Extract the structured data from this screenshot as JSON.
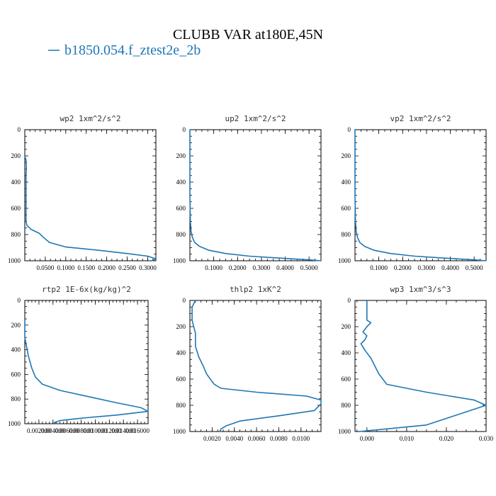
{
  "figure": {
    "title": "CLUBB VAR at180E,45N",
    "legend_label": "b1850.054.f_ztest2e_2b",
    "series_color": "#1f77b4"
  },
  "chart_data": [
    {
      "type": "line",
      "title": "wp2  1xm^2/s^2",
      "xlim": [
        0.0,
        0.32
      ],
      "ylim": [
        1000,
        0
      ],
      "grid": false,
      "xticks": [
        0.05,
        0.1,
        0.15,
        0.2,
        0.25,
        0.3
      ],
      "xtick_labels": [
        "0.0500",
        "0.1000",
        "0.1500",
        "0.2000",
        "0.2500",
        "0.3000"
      ],
      "yticks": [
        0,
        200,
        400,
        600,
        800,
        1000
      ],
      "ytick_labels": [
        "0",
        "200",
        "400",
        "600",
        "800",
        "1000"
      ],
      "series": [
        {
          "x": [
            0.0,
            0.003,
            0.004,
            0.003,
            0.003,
            0.003,
            0.005,
            0.015,
            0.035,
            0.045,
            0.06,
            0.1,
            0.18,
            0.25,
            0.3,
            0.32,
            0.31
          ],
          "y": [
            200,
            230,
            300,
            340,
            500,
            700,
            730,
            760,
            790,
            820,
            860,
            895,
            920,
            945,
            965,
            985,
            1000
          ]
        }
      ]
    },
    {
      "type": "line",
      "title": "up2  1xm^2/s^2",
      "xlim": [
        0.0,
        0.55
      ],
      "ylim": [
        1000,
        0
      ],
      "grid": false,
      "xticks": [
        0.1,
        0.2,
        0.3,
        0.4,
        0.5
      ],
      "xtick_labels": [
        "0.1000",
        "0.2000",
        "0.3000",
        "0.4000",
        "0.5000"
      ],
      "yticks": [
        0,
        200,
        400,
        600,
        800,
        1000
      ],
      "ytick_labels": [
        "0",
        "200",
        "400",
        "600",
        "800",
        "1000"
      ],
      "series": [
        {
          "x": [
            0.0,
            0.0,
            0.002,
            0.005,
            0.01,
            0.02,
            0.04,
            0.08,
            0.15,
            0.25,
            0.38,
            0.5,
            0.55
          ],
          "y": [
            0,
            500,
            700,
            780,
            820,
            860,
            890,
            920,
            945,
            965,
            980,
            993,
            1000
          ]
        }
      ]
    },
    {
      "type": "line",
      "title": "vp2  1xm^2/s^2",
      "xlim": [
        0.0,
        0.55
      ],
      "ylim": [
        1000,
        0
      ],
      "grid": false,
      "xticks": [
        0.1,
        0.2,
        0.3,
        0.4,
        0.5
      ],
      "xtick_labels": [
        "0.1000",
        "0.2000",
        "0.3000",
        "0.4000",
        "0.5000"
      ],
      "yticks": [
        0,
        200,
        400,
        600,
        800,
        1000
      ],
      "ytick_labels": [
        "0",
        "200",
        "400",
        "600",
        "800",
        "1000"
      ],
      "series": [
        {
          "x": [
            0.0,
            0.0,
            0.002,
            0.005,
            0.01,
            0.02,
            0.04,
            0.08,
            0.15,
            0.25,
            0.38,
            0.5,
            0.55
          ],
          "y": [
            0,
            500,
            700,
            780,
            820,
            860,
            890,
            920,
            945,
            965,
            980,
            993,
            1000
          ]
        }
      ]
    },
    {
      "type": "line",
      "title": "rtp2  1E-6x(kg/kg)^2",
      "xlim": [
        0.0,
        0.0175
      ],
      "ylim": [
        1000,
        0
      ],
      "grid": false,
      "xticks": [
        0.002,
        0.004,
        0.006,
        0.008,
        0.01,
        0.012,
        0.014,
        0.016
      ],
      "xtick_labels": [
        "0.002000",
        "0.004000",
        "0.006000",
        "0.008000",
        "0.010000",
        "0.012000",
        "0.014000",
        "0.016000"
      ],
      "yticks": [
        0,
        200,
        400,
        600,
        800,
        1000
      ],
      "ytick_labels": [
        "0",
        "200",
        "400",
        "600",
        "800",
        "1000"
      ],
      "series": [
        {
          "x": [
            0.0,
            0.0,
            0.0005,
            0.001,
            0.0015,
            0.0025,
            0.005,
            0.009,
            0.013,
            0.0165,
            0.0175,
            0.013,
            0.008,
            0.005,
            0.0042,
            0.0045
          ],
          "y": [
            150,
            300,
            450,
            550,
            620,
            680,
            730,
            780,
            830,
            870,
            900,
            930,
            955,
            975,
            990,
            1000
          ]
        }
      ]
    },
    {
      "type": "line",
      "title": "thlp2  1xK^2",
      "xlim": [
        0.0,
        0.0118
      ],
      "ylim": [
        1000,
        0
      ],
      "grid": false,
      "xticks": [
        0.002,
        0.004,
        0.006,
        0.008,
        0.01
      ],
      "xtick_labels": [
        "0.0020",
        "0.0040",
        "0.0060",
        "0.0080",
        "0.0100"
      ],
      "yticks": [
        0,
        200,
        400,
        600,
        800,
        1000
      ],
      "ytick_labels": [
        "0",
        "200",
        "400",
        "600",
        "800",
        "1000"
      ],
      "series": [
        {
          "x": [
            0.0005,
            0.0002,
            0.0002,
            0.0005,
            0.0005,
            0.0008,
            0.0012,
            0.0015,
            0.002,
            0.0022,
            0.0028,
            0.006,
            0.0105,
            0.0118,
            0.0118,
            0.0112,
            0.008,
            0.0045,
            0.0033,
            0.0028,
            0.0027
          ],
          "y": [
            0,
            50,
            150,
            250,
            350,
            430,
            500,
            560,
            620,
            640,
            670,
            700,
            730,
            760,
            790,
            840,
            880,
            920,
            955,
            980,
            1000
          ]
        }
      ]
    },
    {
      "type": "line",
      "title": "wp3  1xm^3/s^3",
      "xlim": [
        -0.003,
        0.03
      ],
      "ylim": [
        1000,
        0
      ],
      "grid": false,
      "xticks": [
        0.0,
        0.01,
        0.02,
        0.03
      ],
      "xtick_labels": [
        "0.000",
        "0.010",
        "0.020",
        "0.030"
      ],
      "yticks": [
        0,
        200,
        400,
        600,
        800,
        1000
      ],
      "ytick_labels": [
        "0",
        "200",
        "400",
        "600",
        "800",
        "1000"
      ],
      "series": [
        {
          "x": [
            0.0,
            0.0,
            0.001,
            0.0,
            -0.001,
            0.0,
            -0.0005,
            -0.0015,
            -0.0005,
            0.001,
            0.002,
            0.003,
            0.005,
            0.015,
            0.027,
            0.03,
            0.026,
            0.02,
            0.015,
            0.005,
            -0.002
          ],
          "y": [
            0,
            150,
            170,
            200,
            240,
            270,
            300,
            330,
            380,
            440,
            500,
            560,
            640,
            700,
            760,
            800,
            840,
            900,
            950,
            980,
            1000
          ]
        }
      ]
    }
  ]
}
